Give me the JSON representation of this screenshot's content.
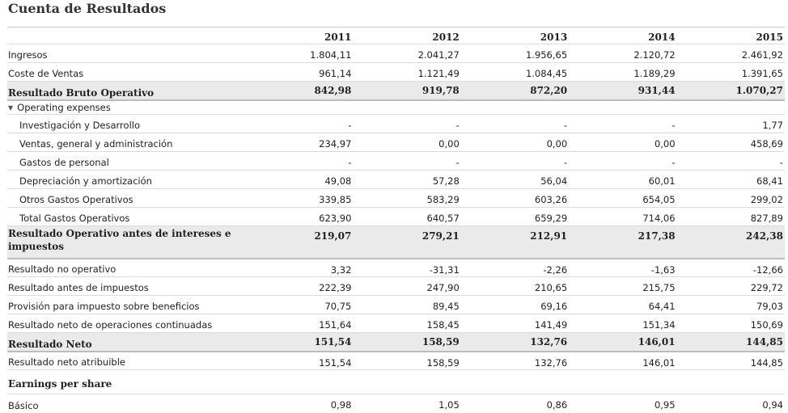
{
  "title": "Cuenta de Resultados",
  "years": [
    "2011",
    "2012",
    "2013",
    "2014",
    "2015"
  ],
  "rows": {
    "ingresos": {
      "label": "Ingresos",
      "values": [
        "1.804,11",
        "2.041,27",
        "1.956,65",
        "2.120,72",
        "2.461,92"
      ]
    },
    "coste_ventas": {
      "label": "Coste de Ventas",
      "values": [
        "961,14",
        "1.121,49",
        "1.084,45",
        "1.189,29",
        "1.391,65"
      ]
    },
    "resultado_bruto": {
      "label": "Resultado Bruto Operativo",
      "values": [
        "842,98",
        "919,78",
        "872,20",
        "931,44",
        "1.070,27"
      ]
    },
    "operating_expenses": {
      "label": "Operating expenses"
    },
    "investigacion": {
      "label": "Investigación y Desarrollo",
      "values": [
        "-",
        "-",
        "-",
        "-",
        "1,77"
      ]
    },
    "ventas_general": {
      "label": "Ventas, general y administración",
      "values": [
        "234,97",
        "0,00",
        "0,00",
        "0,00",
        "458,69"
      ]
    },
    "gastos_personal": {
      "label": "Gastos de personal",
      "values": [
        "-",
        "-",
        "-",
        "-",
        "-"
      ]
    },
    "depreciacion": {
      "label": "Depreciación y amortización",
      "values": [
        "49,08",
        "57,28",
        "56,04",
        "60,01",
        "68,41"
      ]
    },
    "otros_gastos": {
      "label": "Otros Gastos Operativos",
      "values": [
        "339,85",
        "583,29",
        "603,26",
        "654,05",
        "299,02"
      ]
    },
    "total_gastos": {
      "label": "Total Gastos Operativos",
      "values": [
        "623,90",
        "640,57",
        "659,29",
        "714,06",
        "827,89"
      ]
    },
    "resultado_operativo": {
      "label": "Resultado Operativo antes de intereses e impuestos",
      "values": [
        "219,07",
        "279,21",
        "212,91",
        "217,38",
        "242,38"
      ]
    },
    "no_operativo": {
      "label": "Resultado no operativo",
      "values": [
        "3,32",
        "-31,31",
        "-2,26",
        "-1,63",
        "-12,66"
      ]
    },
    "antes_impuestos": {
      "label": "Resultado antes de impuestos",
      "values": [
        "222,39",
        "247,90",
        "210,65",
        "215,75",
        "229,72"
      ]
    },
    "provision": {
      "label": "Provisión para impuesto sobre beneficios",
      "values": [
        "70,75",
        "89,45",
        "69,16",
        "64,41",
        "79,03"
      ]
    },
    "operaciones_continuadas": {
      "label": "Resultado neto de operaciones continuadas",
      "values": [
        "151,64",
        "158,45",
        "141,49",
        "151,34",
        "150,69"
      ]
    },
    "resultado_neto": {
      "label": "Resultado Neto",
      "values": [
        "151,54",
        "158,59",
        "132,76",
        "146,01",
        "144,85"
      ]
    },
    "neto_atribuible": {
      "label": "Resultado neto atribuible",
      "values": [
        "151,54",
        "158,59",
        "132,76",
        "146,01",
        "144,85"
      ]
    },
    "eps_header": {
      "label": "Earnings per share"
    },
    "basico": {
      "label": "Básico",
      "values": [
        "0,98",
        "1,05",
        "0,86",
        "0,95",
        "0,94"
      ]
    }
  },
  "icons": {
    "collapse": "caret-down-icon"
  }
}
